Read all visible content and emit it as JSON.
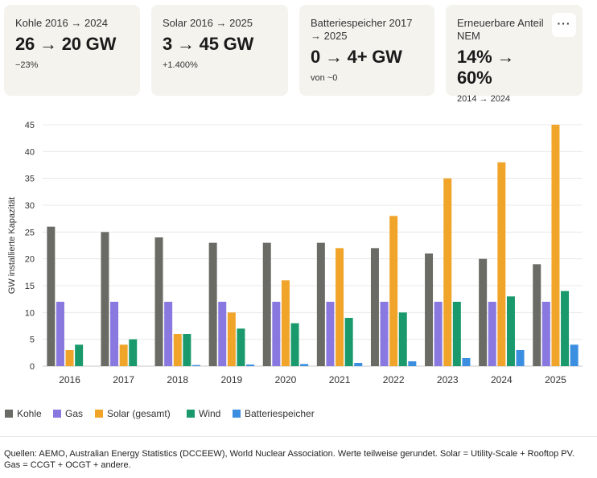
{
  "cards": [
    {
      "label": "Kohle 2016 → 2024",
      "value": "26 → 20 GW",
      "sub": "−23%"
    },
    {
      "label": "Solar 2016 → 2025",
      "value": "3 → 45 GW",
      "sub": "+1.400%"
    },
    {
      "label": "Batteriespeicher 2017 → 2025",
      "value": "0 → 4+ GW",
      "sub": "von ~0"
    },
    {
      "label": "Erneuerbare Anteil NEM",
      "value": "14% → 60%",
      "sub": "2014 → 2024"
    }
  ],
  "more_button_label": "···",
  "chart_data": {
    "type": "bar",
    "categories": [
      "2016",
      "2017",
      "2018",
      "2019",
      "2020",
      "2021",
      "2022",
      "2023",
      "2024",
      "2025"
    ],
    "series": [
      {
        "name": "Kohle",
        "color": "#6b6b66",
        "values": [
          26,
          25,
          24,
          23,
          23,
          23,
          22,
          21,
          20,
          19
        ]
      },
      {
        "name": "Gas",
        "color": "#8878e0",
        "values": [
          12,
          12,
          12,
          12,
          12,
          12,
          12,
          12,
          12,
          12
        ]
      },
      {
        "name": "Solar (gesamt)",
        "color": "#f0a52a",
        "values": [
          3,
          4,
          6,
          10,
          16,
          22,
          28,
          35,
          38,
          45
        ]
      },
      {
        "name": "Wind",
        "color": "#1a9a6c",
        "values": [
          4,
          5,
          6,
          7,
          8,
          9,
          10,
          12,
          13,
          14
        ]
      },
      {
        "name": "Batteriespeicher",
        "color": "#3b8ee0",
        "values": [
          0,
          0,
          0.2,
          0.3,
          0.4,
          0.6,
          0.9,
          1.5,
          3,
          4
        ]
      }
    ],
    "ylabel": "GW installierte Kapazität",
    "ylim": [
      0,
      45
    ],
    "yticks": [
      0,
      5,
      10,
      15,
      20,
      25,
      30,
      35,
      40,
      45
    ],
    "grid": true,
    "legend": "bottom-left"
  },
  "footer": "Quellen: AEMO, Australian Energy Statistics (DCCEEW), World Nuclear Association. Werte teilweise gerundet. Solar = Utility-Scale + Rooftop PV. Gas = CCGT + OCGT + andere."
}
